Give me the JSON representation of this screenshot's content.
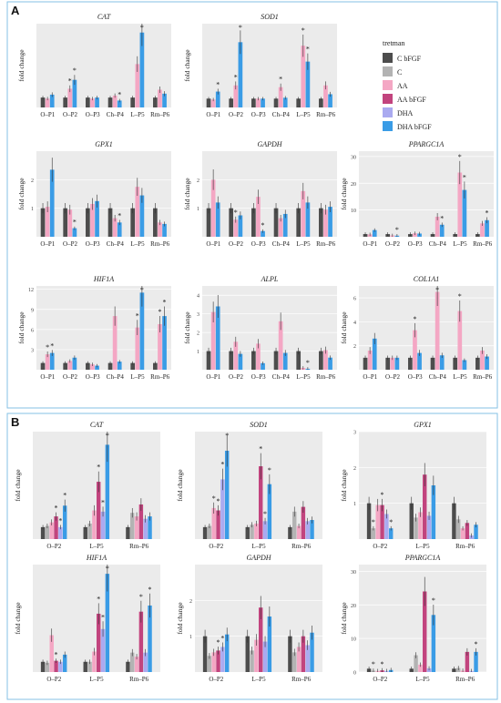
{
  "colors": {
    "C bFGF": "#4d4d4d",
    "C": "#b3b3b3",
    "AA": "#f4a7c4",
    "AA bFGF": "#c2447e",
    "DHA": "#aaaaf0",
    "DHA bFGF": "#3a9ce6",
    "panel_bg": "#ebebeb",
    "panel_border": "#86c2e6",
    "star": "#1a1a1a"
  },
  "panels": [
    {
      "label": "A"
    },
    {
      "label": "B"
    }
  ],
  "legend": {
    "title": "tretman",
    "items": [
      "C bFGF",
      "C",
      "AA",
      "AA bFGF",
      "DHA",
      "DHA bFGF"
    ]
  },
  "ylabel": "fold change",
  "chart_data": [
    {
      "panel": "A",
      "title": "CAT",
      "type": "bar",
      "categories": [
        "O–P1",
        "O–P2",
        "O–P3",
        "Ch–P4",
        "L–P5",
        "Rm–P6"
      ],
      "series": [
        {
          "name": "C bFGF",
          "values": [
            1.0,
            1.0,
            1.0,
            1.0,
            1.0,
            1.0
          ]
        },
        {
          "name": "AA",
          "values": [
            0.9,
            1.9,
            0.9,
            1.2,
            4.4,
            1.8
          ]
        },
        {
          "name": "DHA bFGF",
          "values": [
            1.3,
            2.8,
            1.0,
            0.7,
            7.6,
            1.4
          ]
        }
      ],
      "ylim": [
        0,
        8.5
      ],
      "ticks": [],
      "stars": [
        [
          1,
          1
        ],
        [
          1,
          2
        ],
        [
          3,
          2
        ],
        [
          4,
          2
        ]
      ]
    },
    {
      "panel": "A",
      "title": "SOD1",
      "type": "bar",
      "categories": [
        "O–P1",
        "O–P2",
        "O–P3",
        "Ch–P4",
        "L–P5",
        "Rm–P6"
      ],
      "series": [
        {
          "name": "C bFGF",
          "values": [
            1.0,
            1.0,
            1.0,
            1.0,
            1.0,
            1.0
          ]
        },
        {
          "name": "AA",
          "values": [
            0.9,
            2.5,
            1.0,
            2.3,
            7.0,
            2.5
          ]
        },
        {
          "name": "DHA bFGF",
          "values": [
            1.8,
            7.4,
            1.0,
            1.1,
            5.2,
            1.5
          ]
        }
      ],
      "ylim": [
        0,
        9.5
      ],
      "ticks": [],
      "stars": [
        [
          0,
          2
        ],
        [
          1,
          1
        ],
        [
          1,
          2
        ],
        [
          3,
          1
        ],
        [
          4,
          1
        ],
        [
          4,
          2
        ]
      ]
    },
    {
      "panel": "A",
      "title": "GPX1",
      "type": "bar",
      "categories": [
        "O–P1",
        "O–P2",
        "O–P3",
        "Ch–P4",
        "L–P5",
        "Rm–P6"
      ],
      "series": [
        {
          "name": "C bFGF",
          "values": [
            1.0,
            1.0,
            1.0,
            1.0,
            1.0,
            1.0
          ]
        },
        {
          "name": "AA",
          "values": [
            1.05,
            0.95,
            1.15,
            0.65,
            1.75,
            0.5
          ]
        },
        {
          "name": "DHA bFGF",
          "values": [
            2.35,
            0.3,
            1.25,
            0.5,
            1.45,
            0.45
          ]
        }
      ],
      "ylim": [
        0,
        3.0
      ],
      "ticks": [
        1,
        2
      ],
      "stars": [
        [
          1,
          2
        ],
        [
          3,
          2
        ]
      ]
    },
    {
      "panel": "A",
      "title": "GAPDH",
      "type": "bar",
      "categories": [
        "O–P1",
        "O–P2",
        "O–P3",
        "Ch–P4",
        "L–P5",
        "Rm–P6"
      ],
      "series": [
        {
          "name": "C bFGF",
          "values": [
            1.0,
            1.0,
            1.0,
            1.0,
            1.0,
            1.0
          ]
        },
        {
          "name": "AA",
          "values": [
            2.0,
            0.6,
            1.4,
            0.65,
            1.6,
            0.95
          ]
        },
        {
          "name": "DHA bFGF",
          "values": [
            1.2,
            0.75,
            0.2,
            0.8,
            1.2,
            1.05
          ]
        }
      ],
      "ylim": [
        0,
        3.0
      ],
      "ticks": [
        1,
        2
      ],
      "stars": [
        [
          1,
          1
        ],
        [
          2,
          2
        ]
      ]
    },
    {
      "panel": "A",
      "title": "PPARGC1A",
      "type": "bar",
      "categories": [
        "O–P1",
        "O–P2",
        "O–P3",
        "Ch–P4",
        "L–P5",
        "Rm–P6"
      ],
      "series": [
        {
          "name": "C bFGF",
          "values": [
            1.0,
            1.0,
            1.0,
            1.0,
            1.0,
            1.0
          ]
        },
        {
          "name": "AA",
          "values": [
            0.9,
            0.5,
            1.3,
            7.5,
            24.0,
            5.0
          ]
        },
        {
          "name": "DHA bFGF",
          "values": [
            2.5,
            0.4,
            1.2,
            4.5,
            17.5,
            6.2
          ]
        }
      ],
      "ylim": [
        0,
        32
      ],
      "ticks": [
        10,
        20,
        30
      ],
      "stars": [
        [
          1,
          2
        ],
        [
          3,
          2
        ],
        [
          4,
          1
        ],
        [
          4,
          2
        ],
        [
          5,
          2
        ]
      ]
    },
    {
      "panel": "A",
      "title": "HIF1A",
      "type": "bar",
      "categories": [
        "O–P1",
        "O–P2",
        "O–P3",
        "Ch–P4",
        "L–P5",
        "Rm–P6"
      ],
      "series": [
        {
          "name": "C bFGF",
          "values": [
            1.0,
            1.0,
            1.0,
            1.0,
            1.0,
            1.0
          ]
        },
        {
          "name": "AA",
          "values": [
            2.3,
            1.3,
            0.8,
            8.0,
            6.3,
            6.8
          ]
        },
        {
          "name": "DHA bFGF",
          "values": [
            2.5,
            1.8,
            0.6,
            1.2,
            11.5,
            8.0
          ]
        }
      ],
      "ylim": [
        0,
        12.5
      ],
      "ticks": [
        3,
        6,
        9,
        12
      ],
      "stars": [
        [
          0,
          1
        ],
        [
          0,
          2
        ],
        [
          4,
          1
        ],
        [
          4,
          2
        ],
        [
          5,
          1
        ],
        [
          5,
          2
        ]
      ]
    },
    {
      "panel": "A",
      "title": "ALPL",
      "type": "bar",
      "categories": [
        "O–P1",
        "O–P2",
        "O–P3",
        "Ch–P4",
        "L–P5",
        "Rm–P6"
      ],
      "series": [
        {
          "name": "C bFGF",
          "values": [
            1.0,
            1.0,
            1.0,
            1.0,
            1.0,
            1.0
          ]
        },
        {
          "name": "AA",
          "values": [
            3.1,
            1.5,
            1.4,
            2.6,
            0.1,
            1.05
          ]
        },
        {
          "name": "DHA bFGF",
          "values": [
            3.4,
            0.85,
            0.35,
            0.9,
            0.05,
            0.65
          ]
        }
      ],
      "ylim": [
        0,
        4.5
      ],
      "ticks": [
        1,
        2,
        3,
        4
      ],
      "stars": [
        [
          4,
          2
        ]
      ]
    },
    {
      "panel": "A",
      "title": "COL1A1",
      "type": "bar",
      "categories": [
        "O–P1",
        "O–P2",
        "O–P3",
        "Ch–P4",
        "L–P5",
        "Rm–P6"
      ],
      "series": [
        {
          "name": "C bFGF",
          "values": [
            1.0,
            1.0,
            1.0,
            1.0,
            1.0,
            1.0
          ]
        },
        {
          "name": "AA",
          "values": [
            1.6,
            1.0,
            3.3,
            6.5,
            4.9,
            1.6
          ]
        },
        {
          "name": "DHA bFGF",
          "values": [
            2.6,
            1.0,
            1.4,
            1.2,
            0.8,
            1.1
          ]
        }
      ],
      "ylim": [
        0,
        7.0
      ],
      "ticks": [
        2,
        4,
        6
      ],
      "stars": [
        [
          2,
          1
        ],
        [
          3,
          1
        ],
        [
          4,
          1
        ]
      ]
    },
    {
      "panel": "B",
      "title": "CAT",
      "type": "bar",
      "categories": [
        "O–P2",
        "L–P5",
        "Rm–P6"
      ],
      "series": [
        {
          "name": "C bFGF",
          "values": [
            1.0,
            1.0,
            1.0
          ]
        },
        {
          "name": "C",
          "values": [
            1.1,
            1.3,
            2.2
          ]
        },
        {
          "name": "AA",
          "values": [
            1.4,
            2.4,
            1.9
          ]
        },
        {
          "name": "AA bFGF",
          "values": [
            1.9,
            4.8,
            2.9
          ]
        },
        {
          "name": "DHA",
          "values": [
            1.0,
            2.3,
            1.7
          ]
        },
        {
          "name": "DHA bFGF",
          "values": [
            2.8,
            7.9,
            1.9
          ]
        }
      ],
      "ylim": [
        0,
        9.0
      ],
      "ticks": [],
      "stars": [
        [
          0,
          3
        ],
        [
          0,
          4
        ],
        [
          0,
          5
        ],
        [
          1,
          3
        ],
        [
          1,
          4
        ],
        [
          1,
          5
        ]
      ]
    },
    {
      "panel": "B",
      "title": "SOD1",
      "type": "bar",
      "categories": [
        "O–P2",
        "L–P5",
        "Rm–P6"
      ],
      "series": [
        {
          "name": "C bFGF",
          "values": [
            1.0,
            1.0,
            1.0
          ]
        },
        {
          "name": "C",
          "values": [
            1.1,
            1.2,
            2.3
          ]
        },
        {
          "name": "AA",
          "values": [
            2.6,
            1.3,
            1.1
          ]
        },
        {
          "name": "AA bFGF",
          "values": [
            2.4,
            6.1,
            2.7
          ]
        },
        {
          "name": "DHA",
          "values": [
            5.0,
            1.5,
            1.5
          ]
        },
        {
          "name": "DHA bFGF",
          "values": [
            7.4,
            4.6,
            1.6
          ]
        }
      ],
      "ylim": [
        0,
        9.0
      ],
      "ticks": [],
      "stars": [
        [
          0,
          2
        ],
        [
          0,
          3
        ],
        [
          0,
          4
        ],
        [
          0,
          5
        ],
        [
          1,
          3
        ],
        [
          1,
          4
        ],
        [
          1,
          5
        ]
      ]
    },
    {
      "panel": "B",
      "title": "GPX1",
      "type": "bar",
      "categories": [
        "O–P2",
        "L–P5",
        "Rm–P6"
      ],
      "series": [
        {
          "name": "C bFGF",
          "values": [
            1.0,
            1.0,
            1.0
          ]
        },
        {
          "name": "C",
          "values": [
            0.3,
            0.6,
            0.55
          ]
        },
        {
          "name": "AA",
          "values": [
            0.95,
            0.75,
            0.3
          ]
        },
        {
          "name": "AA bFGF",
          "values": [
            0.95,
            1.8,
            0.45
          ]
        },
        {
          "name": "DHA",
          "values": [
            0.7,
            0.65,
            0.1
          ]
        },
        {
          "name": "DHA bFGF",
          "values": [
            0.3,
            1.5,
            0.4
          ]
        }
      ],
      "ylim": [
        0,
        3.0
      ],
      "ticks": [
        1,
        2,
        3
      ],
      "stars": [
        [
          0,
          1
        ],
        [
          0,
          3
        ],
        [
          0,
          5
        ]
      ]
    },
    {
      "panel": "B",
      "title": "HIF1A",
      "type": "bar",
      "categories": [
        "O–P2",
        "L–P5",
        "Rm–P6"
      ],
      "series": [
        {
          "name": "C bFGF",
          "values": [
            1.0,
            1.0,
            1.0
          ]
        },
        {
          "name": "C",
          "values": [
            0.9,
            1.0,
            1.9
          ]
        },
        {
          "name": "AA",
          "values": [
            3.6,
            2.0,
            1.5
          ]
        },
        {
          "name": "AA bFGF",
          "values": [
            1.1,
            5.7,
            5.9
          ]
        },
        {
          "name": "DHA",
          "values": [
            1.0,
            4.2,
            1.9
          ]
        },
        {
          "name": "DHA bFGF",
          "values": [
            1.7,
            9.6,
            6.5
          ]
        }
      ],
      "ylim": [
        0,
        10.5
      ],
      "ticks": [],
      "stars": [
        [
          0,
          3
        ],
        [
          1,
          3
        ],
        [
          1,
          4
        ],
        [
          1,
          5
        ],
        [
          2,
          3
        ],
        [
          2,
          5
        ]
      ]
    },
    {
      "panel": "B",
      "title": "GAPDH",
      "type": "bar",
      "categories": [
        "O–P2",
        "L–P5",
        "Rm–P6"
      ],
      "series": [
        {
          "name": "C bFGF",
          "values": [
            1.0,
            1.0,
            1.0
          ]
        },
        {
          "name": "C",
          "values": [
            0.45,
            0.6,
            0.55
          ]
        },
        {
          "name": "AA",
          "values": [
            0.55,
            0.9,
            0.7
          ]
        },
        {
          "name": "AA bFGF",
          "values": [
            0.6,
            1.8,
            1.0
          ]
        },
        {
          "name": "DHA",
          "values": [
            0.7,
            0.85,
            0.75
          ]
        },
        {
          "name": "DHA bFGF",
          "values": [
            1.05,
            1.55,
            1.1
          ]
        }
      ],
      "ylim": [
        0,
        3.0
      ],
      "ticks": [
        1,
        2
      ],
      "stars": [
        [
          0,
          3
        ],
        [
          0,
          4
        ]
      ]
    },
    {
      "panel": "B",
      "title": "PPARGC1A",
      "type": "bar",
      "categories": [
        "O–P2",
        "L–P5",
        "Rm–P6"
      ],
      "series": [
        {
          "name": "C bFGF",
          "values": [
            1.0,
            1.0,
            1.0
          ]
        },
        {
          "name": "C",
          "values": [
            0.4,
            5.0,
            1.2
          ]
        },
        {
          "name": "AA",
          "values": [
            0.3,
            2.2,
            0.4
          ]
        },
        {
          "name": "AA bFGF",
          "values": [
            0.5,
            24.0,
            6.0
          ]
        },
        {
          "name": "DHA",
          "values": [
            0.3,
            1.1,
            0.3
          ]
        },
        {
          "name": "DHA bFGF",
          "values": [
            0.6,
            17.0,
            6.0
          ]
        }
      ],
      "ylim": [
        0,
        32
      ],
      "ticks": [
        0,
        10,
        20,
        30
      ],
      "stars": [
        [
          0,
          1
        ],
        [
          0,
          3
        ],
        [
          1,
          5
        ],
        [
          2,
          5
        ]
      ]
    }
  ]
}
